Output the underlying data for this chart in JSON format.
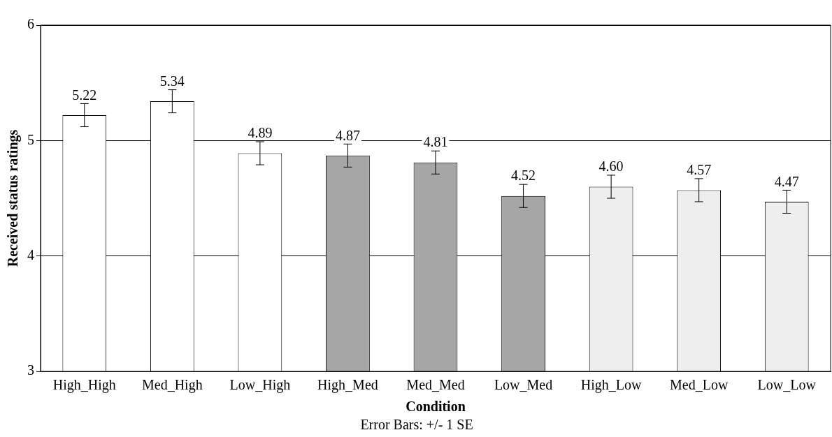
{
  "chart_data": {
    "type": "bar",
    "xlabel": "Condition",
    "ylabel": "Received status ratings",
    "categories": [
      "High_High",
      "Med_High",
      "Low_High",
      "High_Med",
      "Med_Med",
      "Low_Med",
      "High_Low",
      "Med_Low",
      "Low_Low"
    ],
    "values": [
      5.22,
      5.34,
      4.89,
      4.87,
      4.81,
      4.52,
      4.6,
      4.57,
      4.47
    ],
    "value_labels": [
      "5.22",
      "5.34",
      "4.89",
      "4.87",
      "4.81",
      "4.52",
      "4.60",
      "4.57",
      "4.47"
    ],
    "errors": [
      0.1,
      0.1,
      0.1,
      0.1,
      0.1,
      0.1,
      0.1,
      0.1,
      0.1
    ],
    "colors": [
      "#ffffff",
      "#ffffff",
      "#ffffff",
      "#a6a6a6",
      "#a6a6a6",
      "#a6a6a6",
      "#eeeeee",
      "#eeeeee",
      "#eeeeee"
    ],
    "ylim": [
      3,
      6
    ],
    "yticks": [
      3,
      4,
      5,
      6
    ],
    "grid": "y",
    "legend": false,
    "annotations": [
      "Error Bars: +/- 1 SE"
    ]
  }
}
